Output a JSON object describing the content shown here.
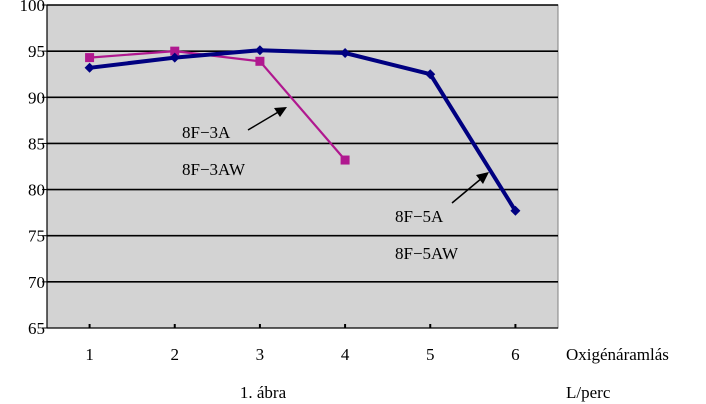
{
  "chart_data": {
    "type": "line",
    "x": [
      1,
      2,
      3,
      4,
      5,
      6
    ],
    "xlim": [
      0.5,
      6.5
    ],
    "ylim": [
      65,
      100
    ],
    "y_ticks": [
      65,
      70,
      75,
      80,
      85,
      90,
      95,
      100
    ],
    "grid": "horizontal",
    "plot_background": "#d3d3d3",
    "xlabel": "Oxigénáramlás",
    "xlabel_unit": "L/perc",
    "caption": "1. ábra",
    "series": [
      {
        "color": "#b0188f",
        "marker": "square",
        "points": [
          [
            1,
            94.3
          ],
          [
            2,
            95.0
          ],
          [
            3,
            93.9
          ],
          [
            4,
            83.2
          ]
        ]
      },
      {
        "color": "#000080",
        "marker": "diamond",
        "points": [
          [
            1,
            93.2
          ],
          [
            2,
            94.3
          ],
          [
            3,
            95.1
          ],
          [
            4,
            94.8
          ],
          [
            5,
            92.5
          ],
          [
            6,
            77.7
          ]
        ]
      }
    ],
    "annotations": [
      {
        "line1": "8F−3A",
        "line2": "8F−3AW",
        "series": 0
      },
      {
        "line1": "8F−5A",
        "line2": "8F−5AW",
        "series": 1
      }
    ]
  }
}
